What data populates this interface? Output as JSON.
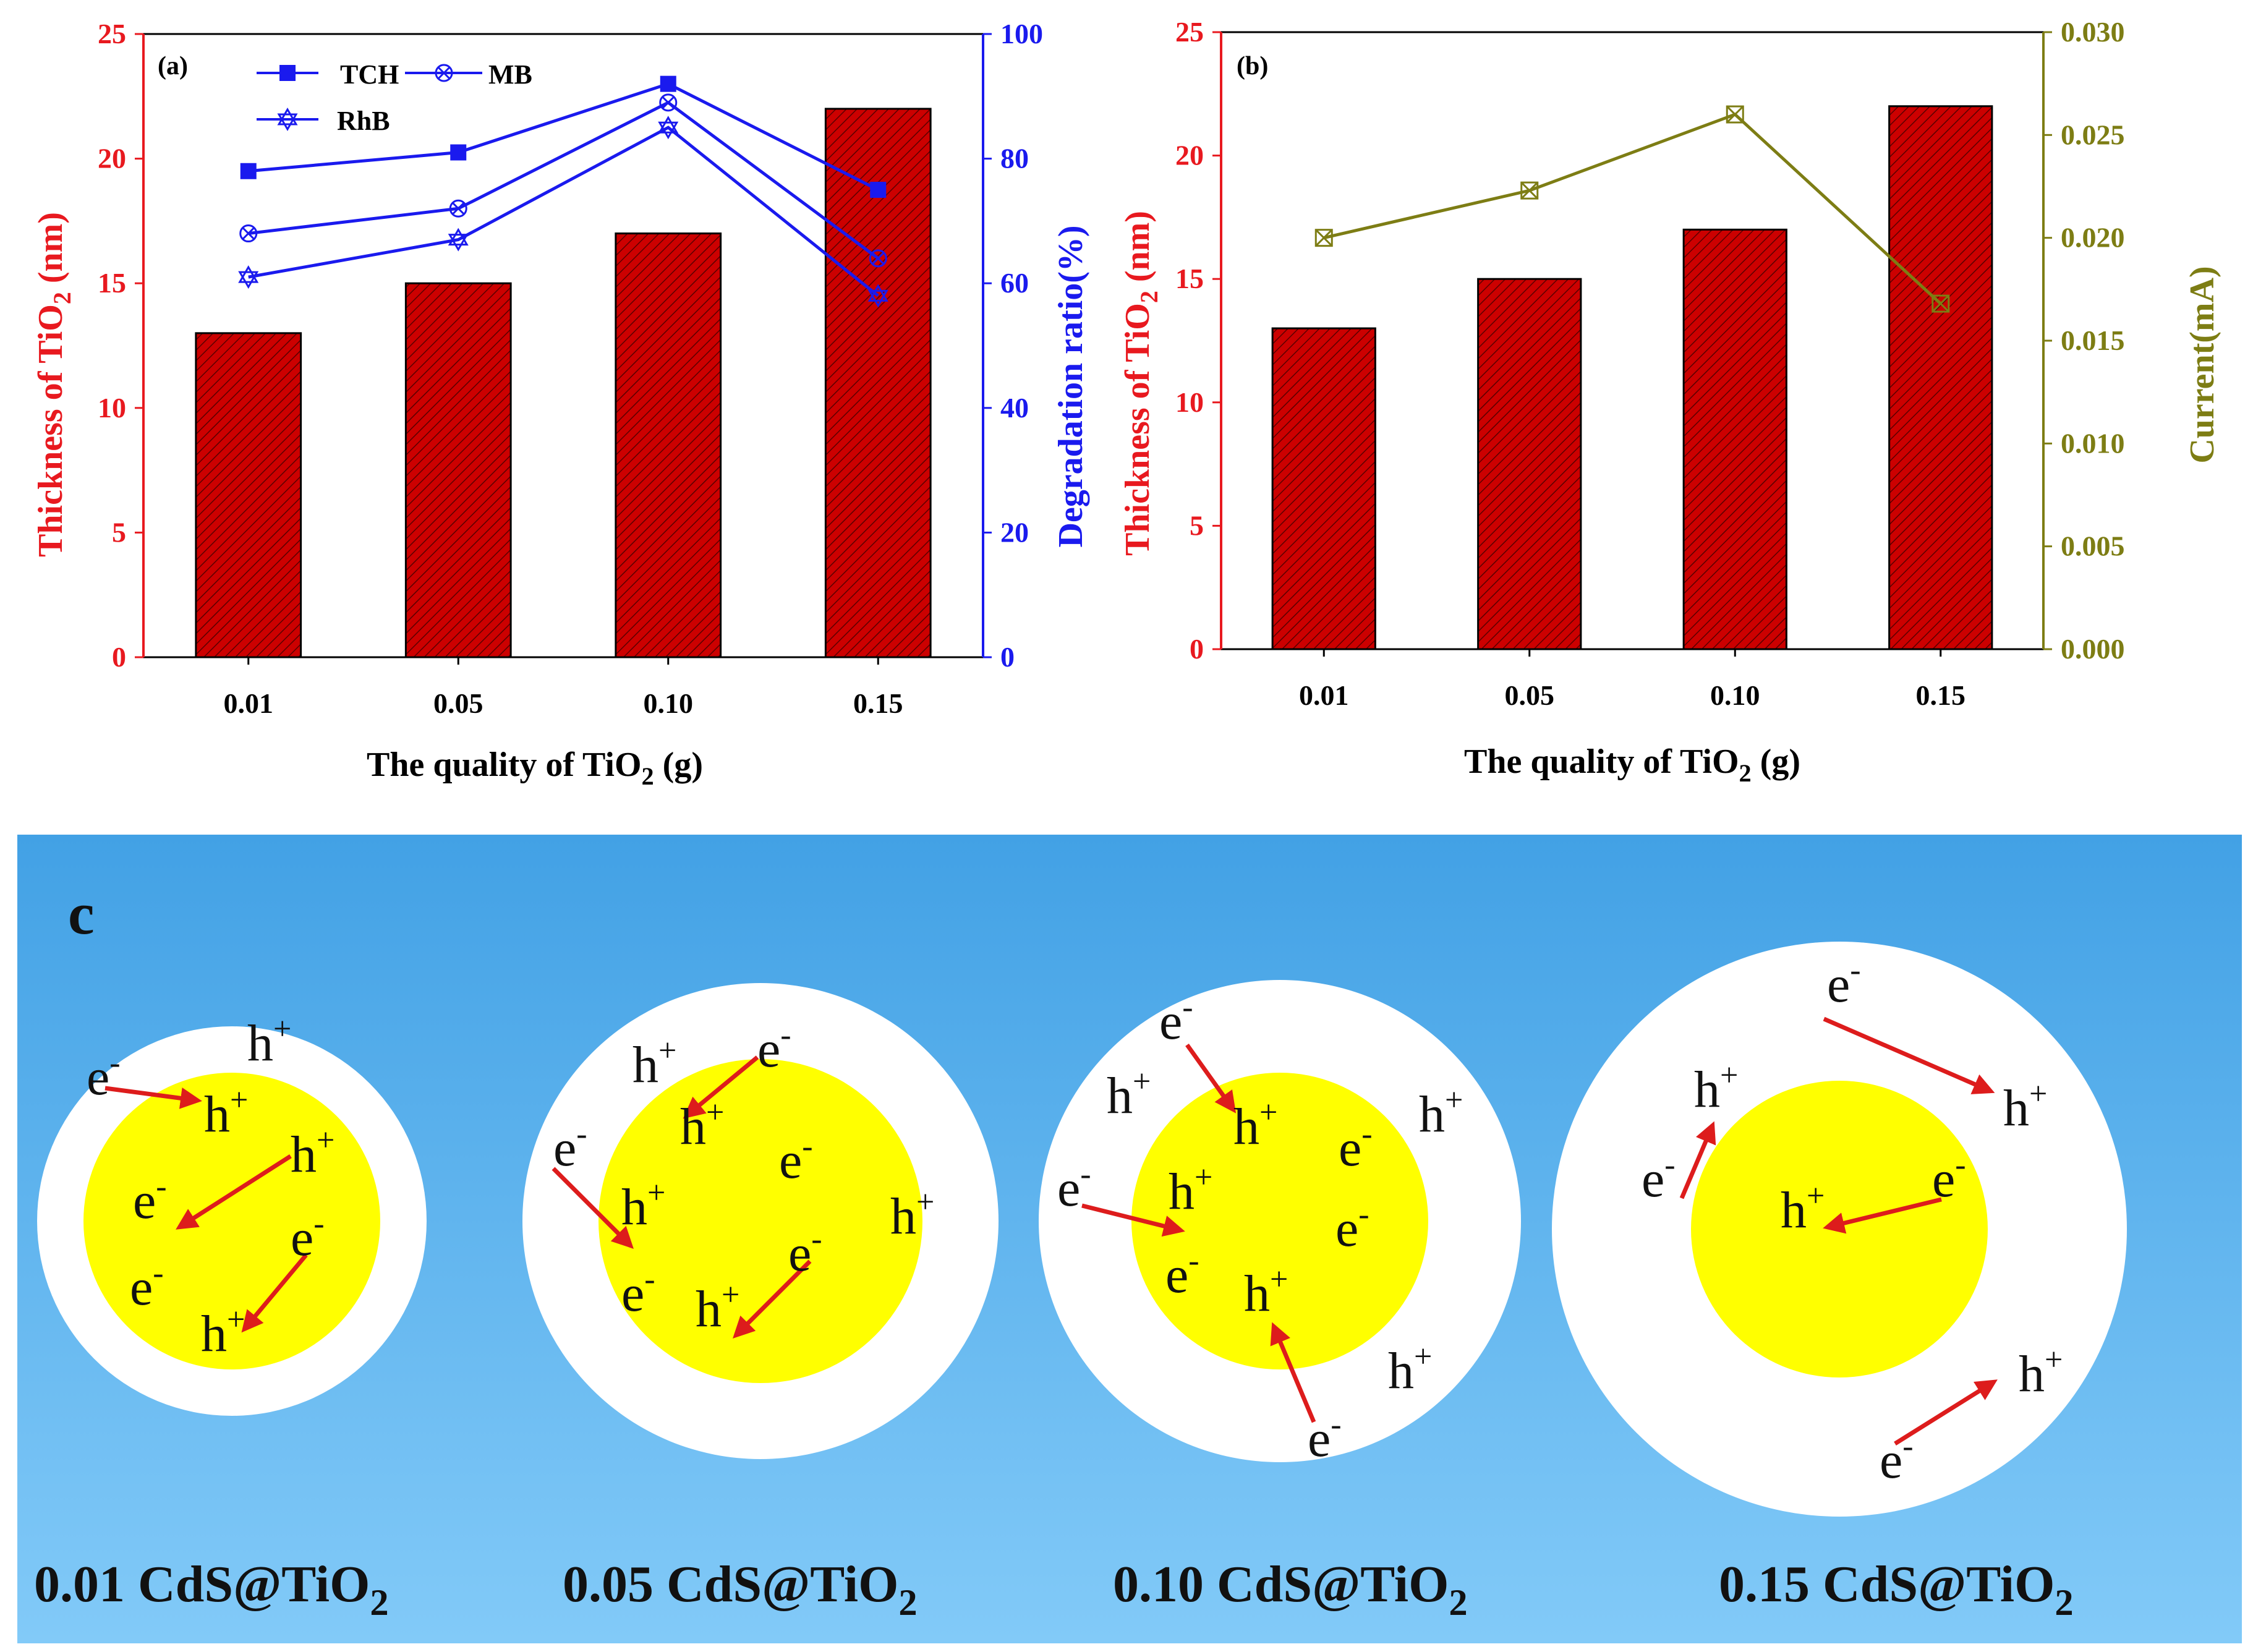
{
  "chart_data": [
    {
      "panel": "(a)",
      "type": "bar+line",
      "categories": [
        "0.01",
        "0.05",
        "0.10",
        "0.15"
      ],
      "xlabel": {
        "pre": "The quality of TiO",
        "sub": "2",
        "post": " (g)"
      },
      "left_axis": {
        "label_pre": "Thickness of TiO",
        "label_sub": "2",
        "label_post": " (nm)",
        "ylim": [
          0,
          25
        ],
        "ticks": [
          "0",
          "5",
          "10",
          "15",
          "20",
          "25"
        ],
        "color": "#e8191f"
      },
      "right_axis": {
        "label": "Degradation ratio(%)",
        "ylim": [
          0,
          100
        ],
        "ticks": [
          "0",
          "20",
          "40",
          "60",
          "80",
          "100"
        ],
        "color": "#1a1aee"
      },
      "bars": {
        "name": "Thickness of TiO2",
        "values": [
          13,
          15,
          17,
          22
        ],
        "color": "#cc0000"
      },
      "series": [
        {
          "name": "TCH",
          "values": [
            78,
            81,
            92,
            75
          ],
          "marker": "square",
          "color": "#1a1aee"
        },
        {
          "name": "MB",
          "values": [
            68,
            72,
            89,
            64
          ],
          "marker": "circle-x",
          "color": "#1a1aee"
        },
        {
          "name": "RhB",
          "values": [
            61,
            67,
            85,
            58
          ],
          "marker": "star",
          "color": "#1a1aee"
        }
      ]
    },
    {
      "panel": "(b)",
      "type": "bar+line",
      "categories": [
        "0.01",
        "0.05",
        "0.10",
        "0.15"
      ],
      "xlabel": {
        "pre": "The quality of TiO",
        "sub": "2",
        "post": " (g)"
      },
      "left_axis": {
        "label_pre": "Thickness of TiO",
        "label_sub": "2",
        "label_post": " (nm)",
        "ylim": [
          0,
          25
        ],
        "ticks": [
          "0",
          "5",
          "10",
          "15",
          "20",
          "25"
        ],
        "color": "#e8191f"
      },
      "right_axis": {
        "label": "Current(mA)",
        "ylim": [
          0,
          0.03
        ],
        "ticks": [
          "0.000",
          "0.005",
          "0.010",
          "0.015",
          "0.020",
          "0.025",
          "0.030"
        ],
        "color": "#7d7d14"
      },
      "bars": {
        "name": "Thickness of TiO2",
        "values": [
          13,
          15,
          17,
          22
        ],
        "color": "#cc0000"
      },
      "series": [
        {
          "name": "Current",
          "values": [
            0.02,
            0.0223,
            0.026,
            0.0168
          ],
          "marker": "square-x",
          "color": "#7d7d14"
        }
      ]
    }
  ],
  "diagram": {
    "letter": "c",
    "colors": {
      "background_top": "#42a1e5",
      "background_bottom": "#82caf8",
      "core": "#ffff00",
      "shell": "#ffffff",
      "arrow": "#dd1c1c"
    },
    "particles": [
      {
        "caption_pre": "0.01 CdS@TiO",
        "caption_sub": "2",
        "labels": [
          {
            "base": "h",
            "sup": "+"
          },
          {
            "base": "e",
            "sup": "-"
          },
          {
            "base": "h",
            "sup": "+"
          },
          {
            "base": "h",
            "sup": "+"
          },
          {
            "base": "e",
            "sup": "-"
          },
          {
            "base": "e",
            "sup": "-"
          },
          {
            "base": "e",
            "sup": "-"
          },
          {
            "base": "h",
            "sup": "+"
          }
        ]
      },
      {
        "caption_pre": "0.05 CdS@TiO",
        "caption_sub": "2",
        "labels": [
          {
            "base": "h",
            "sup": "+"
          },
          {
            "base": "e",
            "sup": "-"
          },
          {
            "base": "h",
            "sup": "+"
          },
          {
            "base": "e",
            "sup": "-"
          },
          {
            "base": "h",
            "sup": "+"
          },
          {
            "base": "e",
            "sup": "-"
          },
          {
            "base": "h",
            "sup": "+"
          },
          {
            "base": "e",
            "sup": "-"
          },
          {
            "base": "e",
            "sup": "-"
          },
          {
            "base": "h",
            "sup": "+"
          }
        ]
      },
      {
        "caption_pre": "0.10 CdS@TiO",
        "caption_sub": "2",
        "labels": [
          {
            "base": "e",
            "sup": "-"
          },
          {
            "base": "h",
            "sup": "+"
          },
          {
            "base": "h",
            "sup": "+"
          },
          {
            "base": "h",
            "sup": "+"
          },
          {
            "base": "e",
            "sup": "-"
          },
          {
            "base": "e",
            "sup": "-"
          },
          {
            "base": "h",
            "sup": "+"
          },
          {
            "base": "e",
            "sup": "-"
          },
          {
            "base": "e",
            "sup": "-"
          },
          {
            "base": "h",
            "sup": "+"
          },
          {
            "base": "h",
            "sup": "+"
          },
          {
            "base": "e",
            "sup": "-"
          }
        ]
      },
      {
        "caption_pre": "0.15 CdS@TiO",
        "caption_sub": "2",
        "labels": [
          {
            "base": "e",
            "sup": "-"
          },
          {
            "base": "h",
            "sup": "+"
          },
          {
            "base": "h",
            "sup": "+"
          },
          {
            "base": "e",
            "sup": "-"
          },
          {
            "base": "h",
            "sup": "+"
          },
          {
            "base": "e",
            "sup": "-"
          },
          {
            "base": "h",
            "sup": "+"
          },
          {
            "base": "e",
            "sup": "-"
          }
        ]
      }
    ]
  }
}
